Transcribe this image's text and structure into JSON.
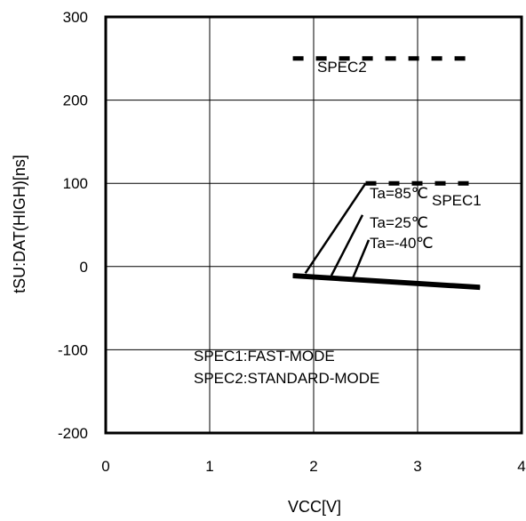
{
  "chart_data": {
    "type": "line",
    "title": "",
    "xlabel": "VCC[V]",
    "ylabel": "tSU:DAT(HIGH)[ns]",
    "xlim": [
      0,
      4
    ],
    "ylim": [
      -200,
      300
    ],
    "xticks": [
      "0",
      "1",
      "2",
      "3",
      "4"
    ],
    "yticks": [
      "300",
      "200",
      "100",
      "0",
      "-100",
      "-200"
    ],
    "grid": true,
    "series": [
      {
        "name": "Ta=85℃",
        "x": [
          1.8,
          3.6
        ],
        "y": [
          -10,
          -24
        ]
      },
      {
        "name": "Ta=25℃",
        "x": [
          1.8,
          3.6
        ],
        "y": [
          -11,
          -25
        ]
      },
      {
        "name": "Ta=-40℃",
        "x": [
          1.8,
          3.6
        ],
        "y": [
          -12,
          -26
        ]
      }
    ],
    "spec_lines": [
      {
        "name": "SPEC1",
        "x": [
          2.5,
          3.5
        ],
        "y": [
          100,
          100
        ]
      },
      {
        "name": "SPEC2",
        "x": [
          1.8,
          3.5
        ],
        "y": [
          250,
          250
        ]
      }
    ],
    "annotations": {
      "spec1_label": "SPEC1",
      "spec2_label": "SPEC2",
      "legend_line1": "SPEC1:FAST-MODE",
      "legend_line2": "SPEC2:STANDARD-MODE"
    }
  }
}
